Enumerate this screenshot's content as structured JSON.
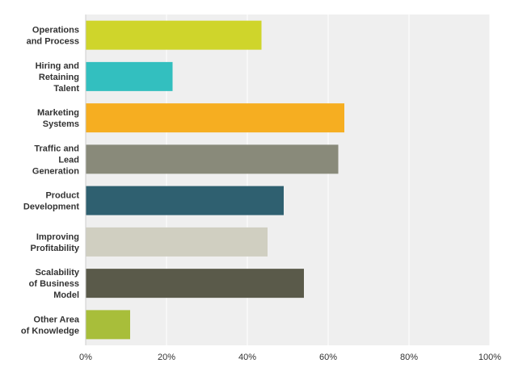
{
  "chart_data": {
    "type": "bar",
    "orientation": "horizontal",
    "categories": [
      [
        "Operations",
        "and Process"
      ],
      [
        "Hiring and",
        "Retaining",
        "Talent"
      ],
      [
        "Marketing",
        "Systems"
      ],
      [
        "Traffic and",
        "Lead",
        "Generation"
      ],
      [
        "Product",
        "Development"
      ],
      [
        "Improving",
        "Profitability"
      ],
      [
        "Scalability",
        "of Business",
        "Model"
      ],
      [
        "Other Area",
        "of Knowledge"
      ]
    ],
    "values": [
      43.5,
      21.5,
      64,
      62.5,
      49,
      45,
      54,
      11
    ],
    "colors": [
      "#cfd52b",
      "#33bfbf",
      "#f6ae21",
      "#898a7a",
      "#2f6070",
      "#d0cfc1",
      "#5a5a4a",
      "#a8be3a"
    ],
    "xlim": [
      0,
      100
    ],
    "x_ticks": [
      "0%",
      "20%",
      "40%",
      "60%",
      "80%",
      "100%"
    ],
    "grid": true,
    "title": "",
    "xlabel": "",
    "ylabel": ""
  }
}
